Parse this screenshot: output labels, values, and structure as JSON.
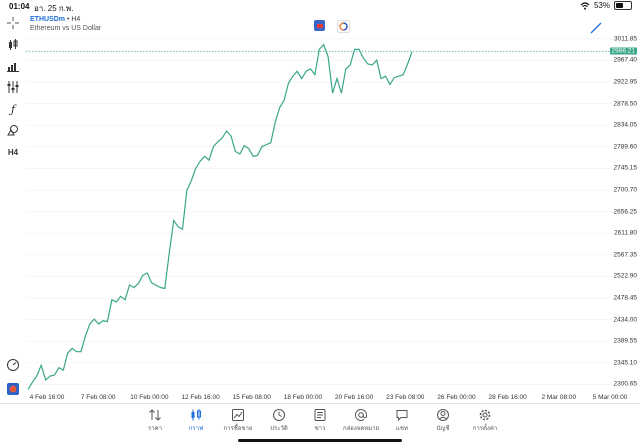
{
  "status_bar": {
    "time": "01:04",
    "date": "อา. 25 ก.พ.",
    "battery": "53%",
    "battery_level": 0.53
  },
  "chart": {
    "symbol": "ETHUSDm",
    "separator": "•",
    "timeframe": "H4",
    "description": "Ethereum vs US Dollar",
    "current_price": "2986.21"
  },
  "left_toolbar": {
    "items": [
      "crosshair-icon",
      "candlestick-icon",
      "bar-chart-icon",
      "sliders-icon",
      "function-icon",
      "shapes-icon"
    ],
    "timeframe_label": "H4"
  },
  "chart_data": {
    "type": "line",
    "price_ticks": [
      "3011.85",
      "2967.40",
      "2922.95",
      "2878.50",
      "2834.05",
      "2789.60",
      "2745.15",
      "2700.70",
      "2656.25",
      "2611.80",
      "2567.35",
      "2522.90",
      "2478.45",
      "2434.00",
      "2389.55",
      "2345.10",
      "2300.65"
    ],
    "time_ticks": [
      "4 Feb 16:00",
      "7 Feb 08:00",
      "10 Feb 00:00",
      "12 Feb 16:00",
      "15 Feb 08:00",
      "18 Feb 00:00",
      "20 Feb 16:00",
      "23 Feb 08:00",
      "26 Feb 00:00",
      "28 Feb 16:00",
      "2 Mar 08:00",
      "5 Mar 00:00"
    ],
    "ylim": [
      2285,
      3030
    ],
    "current_price_line": 2986.21,
    "series": [
      {
        "color": "#3aa68a",
        "values": [
          2290,
          2305,
          2318,
          2340,
          2310,
          2318,
          2320,
          2335,
          2330,
          2365,
          2375,
          2368,
          2368,
          2400,
          2425,
          2435,
          2425,
          2432,
          2430,
          2475,
          2470,
          2482,
          2475,
          2505,
          2500,
          2508,
          2525,
          2530,
          2510,
          2505,
          2500,
          2498,
          2570,
          2638,
          2625,
          2620,
          2700,
          2720,
          2745,
          2760,
          2770,
          2762,
          2790,
          2800,
          2808,
          2822,
          2812,
          2780,
          2775,
          2792,
          2786,
          2770,
          2772,
          2790,
          2794,
          2798,
          2840,
          2870,
          2885,
          2920,
          2935,
          2945,
          2930,
          2945,
          2950,
          2938,
          2990,
          3000,
          2975,
          2900,
          2930,
          2900,
          2950,
          2958,
          2990,
          2990,
          2972,
          2960,
          2958,
          2968,
          2930,
          2935,
          2918,
          2932,
          2935,
          2938,
          2960,
          2985
        ]
      }
    ]
  },
  "bottom_left_icons": [
    "speedometer-icon",
    "broker-icon"
  ],
  "tabs": [
    {
      "label": "ราคา",
      "icon": "arrows-icon"
    },
    {
      "label": "กราฟ",
      "icon": "candles-icon"
    },
    {
      "label": "การซื้อขาย",
      "icon": "trade-chart-icon"
    },
    {
      "label": "ประวัติ",
      "icon": "history-icon"
    },
    {
      "label": "ข่าว",
      "icon": "news-icon"
    },
    {
      "label": "กล่องจดหมาย",
      "icon": "mail-at-icon"
    },
    {
      "label": "แชท",
      "icon": "chat-icon"
    },
    {
      "label": "บัญชี",
      "icon": "account-icon"
    },
    {
      "label": "การตั้งค่า",
      "icon": "gear-icon"
    }
  ],
  "active_tab": 1,
  "colors": {
    "accent": "#1e6fd9",
    "line": "#3aa68a",
    "grid": "#eeeeee"
  }
}
